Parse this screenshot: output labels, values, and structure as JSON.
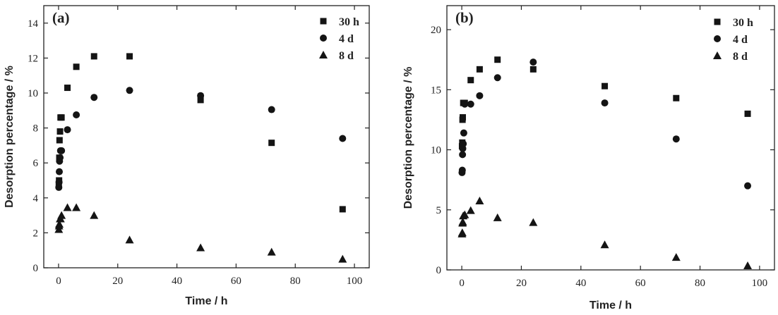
{
  "chart_data": [
    {
      "type": "scatter",
      "panel_label": "(a)",
      "xlabel": "Time / h",
      "ylabel": "Desorption percentage / %",
      "xlim": [
        -5,
        105
      ],
      "ylim": [
        0,
        15
      ],
      "x_ticks": [
        0,
        20,
        40,
        60,
        80,
        100
      ],
      "y_ticks": [
        0,
        2,
        4,
        6,
        8,
        10,
        12,
        14
      ],
      "legend_position": "top-right",
      "series": [
        {
          "name": "30 h",
          "marker": "square",
          "x": [
            0.083,
            0.17,
            0.25,
            0.33,
            0.5,
            0.67,
            1,
            3,
            6,
            12,
            24,
            48,
            72,
            96
          ],
          "y": [
            4.8,
            5.0,
            6.3,
            7.3,
            7.8,
            8.6,
            8.6,
            10.3,
            11.5,
            12.1,
            12.1,
            9.6,
            7.15,
            3.35
          ]
        },
        {
          "name": "4 d",
          "marker": "circle",
          "x": [
            0.083,
            0.17,
            0.25,
            0.33,
            0.5,
            0.67,
            1,
            3,
            6,
            12,
            24,
            48,
            72,
            96
          ],
          "y": [
            4.6,
            4.9,
            5.5,
            6.1,
            6.3,
            6.7,
            6.7,
            7.9,
            8.75,
            9.75,
            10.15,
            9.85,
            9.05,
            7.4
          ]
        },
        {
          "name": "8 d",
          "marker": "triangle",
          "x": [
            0.083,
            0.17,
            0.25,
            0.5,
            0.67,
            1,
            3,
            6,
            12,
            24,
            48,
            72,
            96
          ],
          "y": [
            2.2,
            2.4,
            2.5,
            2.8,
            2.8,
            3.0,
            3.45,
            3.45,
            3.0,
            1.6,
            1.15,
            0.9,
            0.5
          ]
        }
      ]
    },
    {
      "type": "scatter",
      "panel_label": "(b)",
      "xlabel": "Time / h",
      "ylabel": "Desorption percentage / %",
      "xlim": [
        -5,
        105
      ],
      "ylim": [
        0,
        22
      ],
      "x_ticks": [
        0,
        20,
        40,
        60,
        80,
        100
      ],
      "y_ticks": [
        0,
        5,
        10,
        15,
        20
      ],
      "legend_position": "top-right",
      "series": [
        {
          "name": "30 h",
          "marker": "square",
          "x": [
            0.083,
            0.17,
            0.25,
            0.33,
            0.5,
            0.67,
            1,
            3,
            6,
            12,
            24,
            48,
            72,
            96
          ],
          "y": [
            10.3,
            10.6,
            12.5,
            12.7,
            13.9,
            13.9,
            13.9,
            15.8,
            16.7,
            17.5,
            16.7,
            15.3,
            14.3,
            13.0
          ]
        },
        {
          "name": "4 d",
          "marker": "circle",
          "x": [
            0.083,
            0.17,
            0.25,
            0.33,
            0.5,
            0.67,
            1,
            3,
            6,
            12,
            24,
            48,
            72,
            96
          ],
          "y": [
            8.1,
            8.3,
            9.6,
            10.1,
            10.5,
            11.4,
            13.8,
            13.8,
            14.5,
            16.0,
            17.3,
            13.9,
            10.9,
            7.0
          ]
        },
        {
          "name": "8 d",
          "marker": "triangle",
          "x": [
            0.083,
            0.17,
            0.25,
            0.33,
            0.5,
            1,
            3,
            6,
            12,
            24,
            48,
            72,
            96
          ],
          "y": [
            3.0,
            3.1,
            3.9,
            4.0,
            4.5,
            4.6,
            4.95,
            5.75,
            4.35,
            3.95,
            2.1,
            1.05,
            0.35
          ]
        }
      ]
    }
  ]
}
